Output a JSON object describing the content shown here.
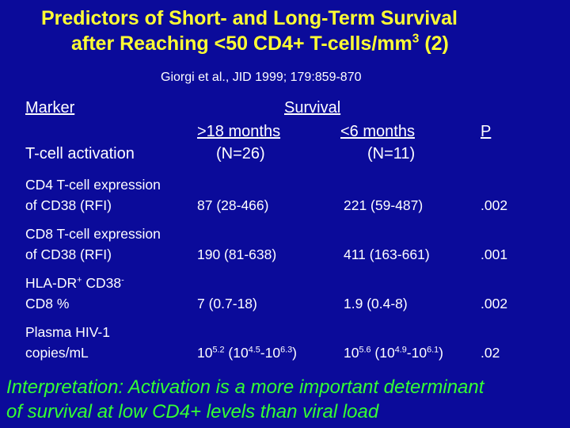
{
  "title": {
    "line1": "Predictors of Short- and Long-Term Survival",
    "line2_prefix": "after Reaching <50 CD4+ T-cells/mm",
    "line2_sup": "3",
    "line2_suffix": " (2)"
  },
  "citation": "Giorgi et al., JID 1999; 179:859-870",
  "table": {
    "header": {
      "marker": "Marker",
      "survival": "Survival",
      "col_long": ">18 months",
      "col_short": "<6 months",
      "col_p": "P",
      "row_label": "T-cell activation",
      "n_long": "(N=26)",
      "n_short": "(N=11)"
    },
    "rows": [
      {
        "label1": "CD4 T-cell expression",
        "label2": " of CD38 (RFI)",
        "long": "87 (28-466)",
        "short": "221 (59-487)",
        "p": ".002"
      },
      {
        "label1": "CD8 T-cell expression",
        "label2": " of CD38 (RFI)",
        "long": "190 (81-638)",
        "short": "411 (163-661)",
        "p": ".001"
      },
      {
        "label1_a": "HLA-DR",
        "label1_sup1": "+",
        "label1_b": " CD38",
        "label1_sup2": "-",
        "label2": " CD8 %",
        "long": "7 (0.7-18)",
        "short": "1.9 (0.4-8)",
        "p": ".002"
      },
      {
        "label1": "Plasma HIV-1",
        "label2": " copies/mL",
        "long": {
          "b1": "10",
          "s1": "5.2",
          "t1": " (10",
          "s2": "4.5",
          "t2": "-10",
          "s3": "6.3",
          "t3": ")"
        },
        "short": {
          "b1": "10",
          "s1": "5.6",
          "t1": " (10",
          "s2": "4.9",
          "t2": "-10",
          "s3": "6.1",
          "t3": ")"
        },
        "p": ".02"
      }
    ]
  },
  "interpretation": {
    "line1": "Interpretation: Activation is a more important determinant",
    "line2": "of survival at low CD4+ levels than viral load"
  },
  "colors": {
    "background": "#0b0b9a",
    "title": "#ffff33",
    "text": "#ffffff",
    "interpretation": "#33ff33"
  }
}
